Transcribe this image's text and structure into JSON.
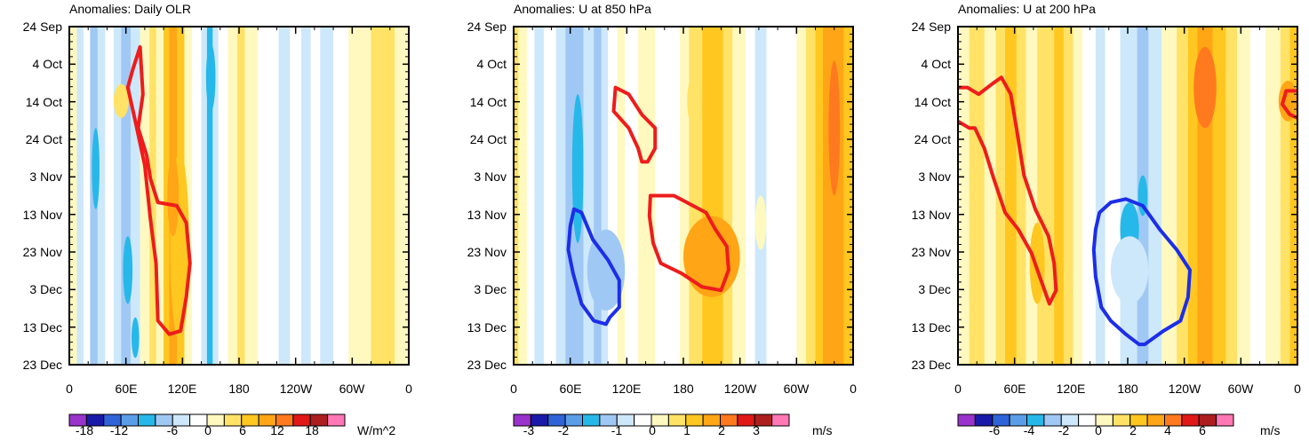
{
  "chart_data": [
    {
      "type": "heatmap",
      "title": "Anomalies: Daily OLR",
      "y_ticks": [
        "24 Sep",
        "4 Oct",
        "14 Oct",
        "24 Oct",
        "3 Nov",
        "13 Nov",
        "23 Nov",
        "3 Dec",
        "13 Dec",
        "23 Dec"
      ],
      "x_ticks": [
        "0",
        "60E",
        "120E",
        "180",
        "120W",
        "60W",
        "0"
      ],
      "x_range": [
        0,
        360
      ],
      "colorbar_labels": [
        "-18",
        "-12",
        "-6",
        "0",
        "6",
        "12",
        "18"
      ],
      "colorbar_unit": "W/m^2",
      "bands": [
        {
          "x0": 0,
          "x1": 8,
          "c": 8
        },
        {
          "x0": 8,
          "x1": 15,
          "c": 6
        },
        {
          "x0": 15,
          "x1": 22,
          "c": 7
        },
        {
          "x0": 22,
          "x1": 30,
          "c": 5
        },
        {
          "x0": 30,
          "x1": 38,
          "c": 6
        },
        {
          "x0": 38,
          "x1": 47,
          "c": 7
        },
        {
          "x0": 47,
          "x1": 55,
          "c": 6
        },
        {
          "x0": 55,
          "x1": 65,
          "c": 5
        },
        {
          "x0": 65,
          "x1": 75,
          "c": 6
        },
        {
          "x0": 75,
          "x1": 85,
          "c": 8
        },
        {
          "x0": 85,
          "x1": 92,
          "c": 9
        },
        {
          "x0": 92,
          "x1": 100,
          "c": 8
        },
        {
          "x0": 100,
          "x1": 106,
          "c": 10
        },
        {
          "x0": 106,
          "x1": 114,
          "c": 11
        },
        {
          "x0": 114,
          "x1": 122,
          "c": 10
        },
        {
          "x0": 122,
          "x1": 130,
          "c": 8
        },
        {
          "x0": 130,
          "x1": 140,
          "c": 7
        },
        {
          "x0": 140,
          "x1": 146,
          "c": 6
        },
        {
          "x0": 146,
          "x1": 152,
          "c": 4
        },
        {
          "x0": 152,
          "x1": 158,
          "c": 6
        },
        {
          "x0": 158,
          "x1": 168,
          "c": 7
        },
        {
          "x0": 168,
          "x1": 178,
          "c": 8
        },
        {
          "x0": 178,
          "x1": 186,
          "c": 9
        },
        {
          "x0": 186,
          "x1": 200,
          "c": 8
        },
        {
          "x0": 200,
          "x1": 222,
          "c": 7
        },
        {
          "x0": 222,
          "x1": 234,
          "c": 6
        },
        {
          "x0": 234,
          "x1": 246,
          "c": 7
        },
        {
          "x0": 246,
          "x1": 256,
          "c": 6
        },
        {
          "x0": 256,
          "x1": 266,
          "c": 7
        },
        {
          "x0": 266,
          "x1": 280,
          "c": 6
        },
        {
          "x0": 280,
          "x1": 296,
          "c": 7
        },
        {
          "x0": 296,
          "x1": 320,
          "c": 8
        },
        {
          "x0": 320,
          "x1": 345,
          "c": 9
        },
        {
          "x0": 345,
          "x1": 360,
          "c": 8
        }
      ],
      "patches": [
        {
          "cx": 117,
          "cy": 0.65,
          "rx": 10,
          "ry": 0.28,
          "c": 10
        },
        {
          "cx": 110,
          "cy": 0.5,
          "rx": 6,
          "ry": 0.12,
          "c": 11
        },
        {
          "cx": 150,
          "cy": 0.15,
          "rx": 5,
          "ry": 0.1,
          "c": 4
        },
        {
          "cx": 62,
          "cy": 0.72,
          "rx": 5,
          "ry": 0.1,
          "c": 4
        },
        {
          "cx": 28,
          "cy": 0.42,
          "rx": 4,
          "ry": 0.12,
          "c": 4
        },
        {
          "cx": 70,
          "cy": 0.92,
          "rx": 4,
          "ry": 0.06,
          "c": 4
        },
        {
          "cx": 55,
          "cy": 0.22,
          "rx": 8,
          "ry": 0.05,
          "c": 9
        }
      ],
      "contours": [
        {
          "color": "red",
          "points": [
            [
              75,
              0.06
            ],
            [
              78,
              0.2
            ],
            [
              73,
              0.3
            ],
            [
              82,
              0.38
            ],
            [
              86,
              0.45
            ],
            [
              94,
              0.52
            ],
            [
              114,
              0.53
            ],
            [
              124,
              0.58
            ],
            [
              128,
              0.7
            ],
            [
              124,
              0.8
            ],
            [
              118,
              0.9
            ],
            [
              106,
              0.91
            ],
            [
              94,
              0.87
            ],
            [
              92,
              0.7
            ],
            [
              86,
              0.57
            ],
            [
              80,
              0.41
            ],
            [
              70,
              0.28
            ],
            [
              62,
              0.18
            ],
            [
              68,
              0.12
            ]
          ]
        }
      ]
    },
    {
      "type": "heatmap",
      "title": "Anomalies: U at 850 hPa",
      "y_ticks": [
        "24 Sep",
        "4 Oct",
        "14 Oct",
        "24 Oct",
        "3 Nov",
        "13 Nov",
        "23 Nov",
        "3 Dec",
        "13 Dec",
        "23 Dec"
      ],
      "x_ticks": [
        "0",
        "60E",
        "120E",
        "180",
        "120W",
        "60W",
        "0"
      ],
      "x_range": [
        0,
        360
      ],
      "colorbar_labels": [
        "-3",
        "-2",
        "-1",
        "0",
        "1",
        "2",
        "3"
      ],
      "colorbar_unit": "m/s",
      "bands": [
        {
          "x0": 0,
          "x1": 5,
          "c": 9
        },
        {
          "x0": 5,
          "x1": 14,
          "c": 8
        },
        {
          "x0": 14,
          "x1": 22,
          "c": 7
        },
        {
          "x0": 22,
          "x1": 32,
          "c": 6
        },
        {
          "x0": 32,
          "x1": 45,
          "c": 7
        },
        {
          "x0": 45,
          "x1": 55,
          "c": 6
        },
        {
          "x0": 55,
          "x1": 62,
          "c": 5
        },
        {
          "x0": 62,
          "x1": 74,
          "c": 5
        },
        {
          "x0": 74,
          "x1": 85,
          "c": 6
        },
        {
          "x0": 85,
          "x1": 93,
          "c": 5
        },
        {
          "x0": 93,
          "x1": 100,
          "c": 6
        },
        {
          "x0": 100,
          "x1": 110,
          "c": 7
        },
        {
          "x0": 110,
          "x1": 118,
          "c": 8
        },
        {
          "x0": 118,
          "x1": 132,
          "c": 7
        },
        {
          "x0": 132,
          "x1": 150,
          "c": 8
        },
        {
          "x0": 150,
          "x1": 176,
          "c": 7
        },
        {
          "x0": 176,
          "x1": 186,
          "c": 8
        },
        {
          "x0": 186,
          "x1": 200,
          "c": 9
        },
        {
          "x0": 200,
          "x1": 222,
          "c": 10
        },
        {
          "x0": 222,
          "x1": 232,
          "c": 9
        },
        {
          "x0": 232,
          "x1": 246,
          "c": 8
        },
        {
          "x0": 246,
          "x1": 256,
          "c": 7
        },
        {
          "x0": 256,
          "x1": 268,
          "c": 6
        },
        {
          "x0": 268,
          "x1": 282,
          "c": 7
        },
        {
          "x0": 282,
          "x1": 300,
          "c": 7
        },
        {
          "x0": 300,
          "x1": 310,
          "c": 8
        },
        {
          "x0": 310,
          "x1": 320,
          "c": 9
        },
        {
          "x0": 320,
          "x1": 328,
          "c": 10
        },
        {
          "x0": 328,
          "x1": 350,
          "c": 11
        },
        {
          "x0": 350,
          "x1": 360,
          "c": 10
        }
      ],
      "patches": [
        {
          "cx": 68,
          "cy": 0.42,
          "rx": 6,
          "ry": 0.22,
          "c": 4
        },
        {
          "cx": 98,
          "cy": 0.72,
          "rx": 20,
          "ry": 0.12,
          "c": 5
        },
        {
          "cx": 210,
          "cy": 0.68,
          "rx": 30,
          "ry": 0.12,
          "c": 11
        },
        {
          "cx": 192,
          "cy": 0.22,
          "rx": 8,
          "ry": 0.08,
          "c": 9
        },
        {
          "cx": 262,
          "cy": 0.58,
          "rx": 6,
          "ry": 0.08,
          "c": 8
        },
        {
          "cx": 340,
          "cy": 0.3,
          "rx": 6,
          "ry": 0.2,
          "c": 12
        }
      ],
      "contours": [
        {
          "color": "red",
          "points": [
            [
              108,
              0.18
            ],
            [
              122,
              0.2
            ],
            [
              136,
              0.26
            ],
            [
              150,
              0.3
            ],
            [
              150,
              0.36
            ],
            [
              142,
              0.4
            ],
            [
              136,
              0.4
            ],
            [
              132,
              0.36
            ],
            [
              122,
              0.3
            ],
            [
              106,
              0.25
            ]
          ]
        },
        {
          "color": "red",
          "points": [
            [
              145,
              0.5
            ],
            [
              170,
              0.5
            ],
            [
              204,
              0.55
            ],
            [
              214,
              0.6
            ],
            [
              226,
              0.65
            ],
            [
              228,
              0.72
            ],
            [
              220,
              0.78
            ],
            [
              200,
              0.77
            ],
            [
              178,
              0.73
            ],
            [
              156,
              0.7
            ],
            [
              148,
              0.64
            ],
            [
              144,
              0.56
            ]
          ]
        },
        {
          "color": "blue",
          "points": [
            [
              64,
              0.54
            ],
            [
              72,
              0.55
            ],
            [
              84,
              0.63
            ],
            [
              100,
              0.69
            ],
            [
              112,
              0.75
            ],
            [
              112,
              0.83
            ],
            [
              102,
              0.86
            ],
            [
              98,
              0.88
            ],
            [
              85,
              0.87
            ],
            [
              72,
              0.82
            ],
            [
              63,
              0.73
            ],
            [
              58,
              0.66
            ],
            [
              60,
              0.59
            ]
          ]
        }
      ]
    },
    {
      "type": "heatmap",
      "title": "Anomalies: U at 200 hPa",
      "y_ticks": [
        "24 Sep",
        "4 Oct",
        "14 Oct",
        "24 Oct",
        "3 Nov",
        "13 Nov",
        "23 Nov",
        "3 Dec",
        "13 Dec",
        "23 Dec"
      ],
      "x_ticks": [
        "0",
        "60E",
        "120E",
        "180",
        "120W",
        "60W",
        "0"
      ],
      "x_range": [
        0,
        360
      ],
      "colorbar_labels": [
        "-6",
        "-4",
        "-2",
        "0",
        "2",
        "4",
        "6"
      ],
      "colorbar_unit": "m/s",
      "bands": [
        {
          "x0": 0,
          "x1": 12,
          "c": 8
        },
        {
          "x0": 12,
          "x1": 28,
          "c": 9
        },
        {
          "x0": 28,
          "x1": 40,
          "c": 8
        },
        {
          "x0": 40,
          "x1": 50,
          "c": 9
        },
        {
          "x0": 50,
          "x1": 62,
          "c": 10
        },
        {
          "x0": 62,
          "x1": 72,
          "c": 9
        },
        {
          "x0": 72,
          "x1": 84,
          "c": 8
        },
        {
          "x0": 84,
          "x1": 102,
          "c": 9
        },
        {
          "x0": 102,
          "x1": 112,
          "c": 10
        },
        {
          "x0": 112,
          "x1": 122,
          "c": 9
        },
        {
          "x0": 122,
          "x1": 132,
          "c": 8
        },
        {
          "x0": 132,
          "x1": 146,
          "c": 7
        },
        {
          "x0": 146,
          "x1": 156,
          "c": 6
        },
        {
          "x0": 156,
          "x1": 172,
          "c": 7
        },
        {
          "x0": 172,
          "x1": 190,
          "c": 6
        },
        {
          "x0": 190,
          "x1": 202,
          "c": 5
        },
        {
          "x0": 202,
          "x1": 216,
          "c": 6
        },
        {
          "x0": 216,
          "x1": 232,
          "c": 8
        },
        {
          "x0": 232,
          "x1": 244,
          "c": 9
        },
        {
          "x0": 244,
          "x1": 254,
          "c": 10
        },
        {
          "x0": 254,
          "x1": 270,
          "c": 11
        },
        {
          "x0": 270,
          "x1": 284,
          "c": 10
        },
        {
          "x0": 284,
          "x1": 296,
          "c": 9
        },
        {
          "x0": 296,
          "x1": 310,
          "c": 8
        },
        {
          "x0": 310,
          "x1": 326,
          "c": 7
        },
        {
          "x0": 326,
          "x1": 342,
          "c": 8
        },
        {
          "x0": 342,
          "x1": 352,
          "c": 9
        },
        {
          "x0": 352,
          "x1": 360,
          "c": 10
        }
      ],
      "patches": [
        {
          "cx": 182,
          "cy": 0.6,
          "rx": 10,
          "ry": 0.08,
          "c": 4
        },
        {
          "cx": 196,
          "cy": 0.5,
          "rx": 5,
          "ry": 0.06,
          "c": 4
        },
        {
          "cx": 182,
          "cy": 0.72,
          "rx": 20,
          "ry": 0.1,
          "c": 6
        },
        {
          "cx": 262,
          "cy": 0.18,
          "rx": 12,
          "ry": 0.12,
          "c": 12
        },
        {
          "cx": 84,
          "cy": 0.7,
          "rx": 8,
          "ry": 0.12,
          "c": 10
        },
        {
          "cx": 350,
          "cy": 0.22,
          "rx": 10,
          "ry": 0.06,
          "c": 11
        }
      ],
      "contours": [
        {
          "color": "red",
          "points": [
            [
              0,
              0.18
            ],
            [
              10,
              0.18
            ],
            [
              22,
              0.2
            ],
            [
              36,
              0.17
            ],
            [
              46,
              0.15
            ],
            [
              56,
              0.2
            ],
            [
              62,
              0.3
            ],
            [
              70,
              0.44
            ],
            [
              82,
              0.54
            ],
            [
              96,
              0.62
            ],
            [
              102,
              0.7
            ],
            [
              104,
              0.78
            ],
            [
              97,
              0.82
            ],
            [
              88,
              0.75
            ],
            [
              78,
              0.67
            ],
            [
              64,
              0.6
            ],
            [
              50,
              0.55
            ],
            [
              38,
              0.45
            ],
            [
              28,
              0.36
            ],
            [
              18,
              0.3
            ],
            [
              12,
              0.3
            ],
            [
              0,
              0.28
            ]
          ]
        },
        {
          "color": "red",
          "points": [
            [
              360,
              0.19
            ],
            [
              348,
              0.19
            ],
            [
              344,
              0.23
            ],
            [
              352,
              0.26
            ],
            [
              360,
              0.27
            ]
          ]
        },
        {
          "color": "blue",
          "points": [
            [
              150,
              0.55
            ],
            [
              162,
              0.52
            ],
            [
              178,
              0.51
            ],
            [
              196,
              0.53
            ],
            [
              214,
              0.6
            ],
            [
              232,
              0.66
            ],
            [
              246,
              0.72
            ],
            [
              244,
              0.8
            ],
            [
              236,
              0.87
            ],
            [
              218,
              0.9
            ],
            [
              198,
              0.94
            ],
            [
              192,
              0.94
            ],
            [
              178,
              0.91
            ],
            [
              162,
              0.87
            ],
            [
              152,
              0.83
            ],
            [
              146,
              0.74
            ],
            [
              144,
              0.66
            ],
            [
              146,
              0.6
            ]
          ]
        }
      ]
    }
  ],
  "colors": [
    "#9933cc",
    "#1a1aa8",
    "#2f63d8",
    "#5a9ee8",
    "#26b8e8",
    "#a0c8f4",
    "#cde8fa",
    "#ffffff",
    "#fff9c0",
    "#ffe266",
    "#ffc71f",
    "#ffa516",
    "#ff7a1e",
    "#e01818",
    "#ad1e1e",
    "#ff77b5"
  ]
}
